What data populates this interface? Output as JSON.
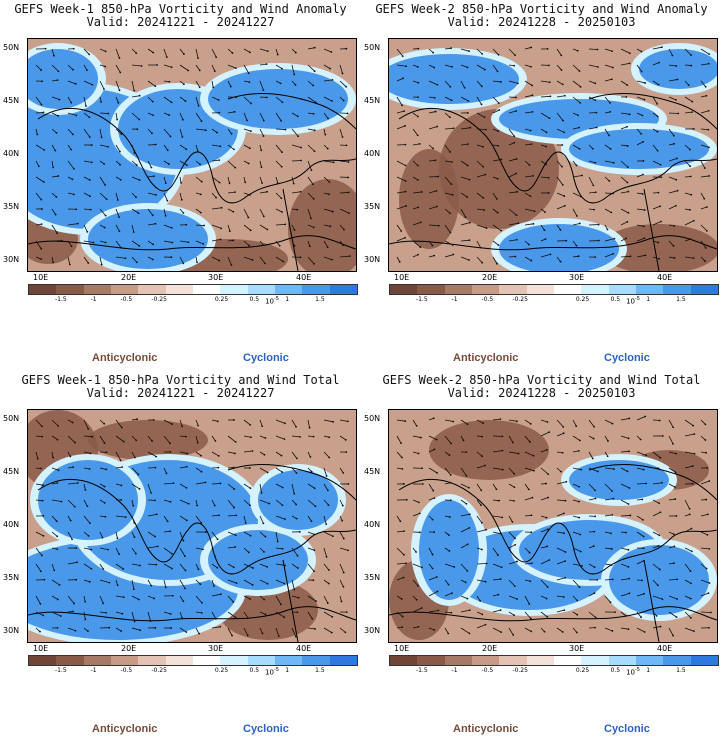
{
  "panels": [
    {
      "title_line1": "GEFS Week-1 850-hPa Vorticity and Wind Anomaly",
      "title_line2": "Valid: 20241221 - 20241227",
      "variant": 0
    },
    {
      "title_line1": "GEFS Week-2 850-hPa Vorticity and Wind Anomaly",
      "title_line2": "Valid: 20241228 - 20250103",
      "variant": 1
    },
    {
      "title_line1": "GEFS Week-1 850-hPa Vorticity and Wind Total",
      "title_line2": "Valid: 20241221 - 20241227",
      "variant": 2
    },
    {
      "title_line1": "GEFS Week-2 850-hPa Vorticity and Wind Total",
      "title_line2": "Valid: 20241228 - 20250103",
      "variant": 3
    }
  ],
  "lat_labels": [
    "50N",
    "45N",
    "40N",
    "35N",
    "30N"
  ],
  "lon_labels": [
    "10E",
    "20E",
    "30E",
    "40E"
  ],
  "colorbar": {
    "ticks": [
      "-1.5",
      "-1",
      "-0.5",
      "-0.25",
      "0.25",
      "0.5",
      "1",
      "1.5"
    ],
    "scale_label": "10",
    "scale_exponent": "-5",
    "colors": [
      "#6e4536",
      "#8a5a48",
      "#a77a66",
      "#c79b86",
      "#e3c4b4",
      "#f4e2d8",
      "#ffffff",
      "#d4f2ff",
      "#a8dcff",
      "#6fb8f4",
      "#4a98ea",
      "#2f78e0"
    ]
  },
  "legend": {
    "anticyclonic": "Anticyclonic",
    "cyclonic": "Cyclonic"
  },
  "colors": {
    "anticyclonic": "#7a4a3a",
    "cyclonic": "#2a62c8",
    "neutral_brown": "#c79b86",
    "blue": "#4a98ea"
  }
}
